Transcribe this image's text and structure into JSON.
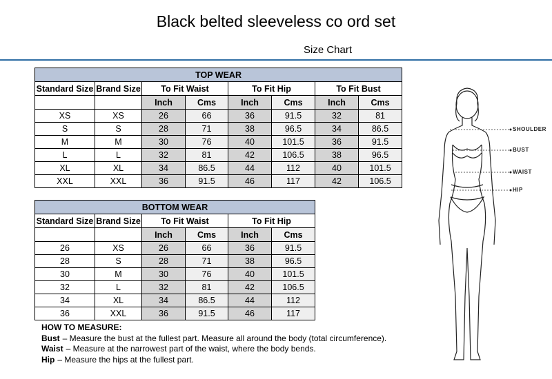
{
  "header": {
    "title": "Black belted sleeveless co ord set",
    "subtitle": "Size Chart"
  },
  "top_wear": {
    "title": "TOP WEAR",
    "columns": [
      "Standard Size",
      "Brand Size",
      "To Fit Waist",
      "To Fit Hip",
      "To Fit Bust"
    ],
    "units": [
      "Inch",
      "Cms"
    ],
    "rows": [
      [
        "XS",
        "XS",
        26,
        66,
        36,
        91.5,
        32,
        81
      ],
      [
        "S",
        "S",
        28,
        71,
        38,
        96.5,
        34,
        86.5
      ],
      [
        "M",
        "M",
        30,
        76,
        40,
        101.5,
        36,
        91.5
      ],
      [
        "L",
        "L",
        32,
        81,
        42,
        106.5,
        38,
        96.5
      ],
      [
        "XL",
        "XL",
        34,
        86.5,
        44,
        112,
        40,
        101.5
      ],
      [
        "XXL",
        "XXL",
        36,
        91.5,
        46,
        117,
        42,
        106.5
      ]
    ]
  },
  "bottom_wear": {
    "title": "BOTTOM WEAR",
    "columns": [
      "Standard Size",
      "Brand Size",
      "To Fit Waist",
      "To Fit Hip"
    ],
    "units": [
      "Inch",
      "Cms"
    ],
    "rows": [
      [
        26,
        "XS",
        26,
        66,
        36,
        91.5
      ],
      [
        28,
        "S",
        28,
        71,
        38,
        96.5
      ],
      [
        30,
        "M",
        30,
        76,
        40,
        101.5
      ],
      [
        32,
        "L",
        32,
        81,
        42,
        106.5
      ],
      [
        34,
        "XL",
        34,
        86.5,
        44,
        112
      ],
      [
        36,
        "XXL",
        36,
        91.5,
        46,
        117
      ]
    ]
  },
  "notes": {
    "title": "HOW TO MEASURE:",
    "items": [
      {
        "term": "Bust",
        "text": "– Measure the bust at the fullest part. Measure all around the body (total circumference)."
      },
      {
        "term": "Waist",
        "text": "– Measure at the narrowest part of the waist, where the body bends."
      },
      {
        "term": "Hip",
        "text": "– Measure the hips at the fullest part."
      }
    ]
  },
  "figure": {
    "labels": [
      "SHOULDER",
      "BUST",
      "WAIST",
      "HIP"
    ]
  }
}
